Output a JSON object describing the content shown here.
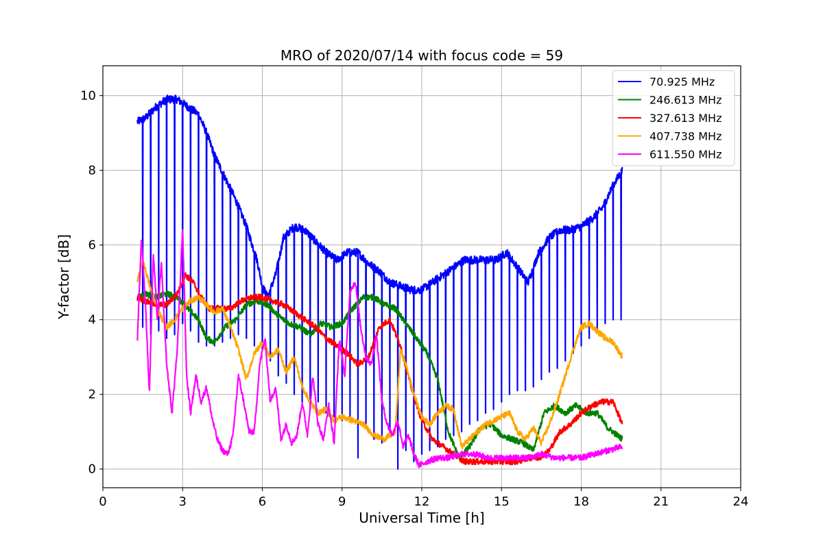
{
  "chart_data": {
    "type": "line",
    "title": "MRO of 2020/07/14 with focus code = 59",
    "xlabel": "Universal Time [h]",
    "ylabel": "Y-factor [dB]",
    "xlim": [
      0,
      24
    ],
    "ylim": [
      -0.5,
      10.8
    ],
    "xticks": [
      0,
      3,
      6,
      9,
      12,
      15,
      18,
      21,
      24
    ],
    "xtick_labels": [
      "0",
      "3",
      "6",
      "9",
      "12",
      "15",
      "18",
      "21",
      "24"
    ],
    "yticks": [
      0,
      2,
      4,
      6,
      8,
      10
    ],
    "ytick_labels": [
      "0",
      "2",
      "4",
      "6",
      "8",
      "10"
    ],
    "grid": true,
    "legend_position": "top-right",
    "series": [
      {
        "name": " 70.925 MHz",
        "color": "#0000ff",
        "x": [
          1.3,
          1.6,
          2.0,
          2.4,
          2.8,
          3.2,
          3.6,
          3.9,
          4.2,
          4.6,
          5.0,
          5.4,
          5.8,
          6.0,
          6.2,
          6.5,
          6.8,
          7.2,
          7.6,
          8.0,
          8.4,
          8.8,
          9.2,
          9.6,
          10.0,
          10.4,
          10.8,
          11.2,
          11.6,
          12.0,
          12.4,
          12.8,
          13.2,
          13.6,
          14.0,
          14.4,
          14.8,
          15.2,
          15.6,
          16.0,
          16.4,
          16.8,
          17.2,
          17.6,
          18.0,
          18.4,
          18.8,
          19.2,
          19.55
        ],
        "y": [
          9.3,
          9.4,
          9.7,
          9.9,
          9.9,
          9.7,
          9.5,
          9.0,
          8.4,
          7.8,
          7.2,
          6.5,
          5.6,
          4.9,
          4.6,
          5.2,
          6.2,
          6.5,
          6.4,
          6.1,
          5.8,
          5.6,
          5.8,
          5.8,
          5.5,
          5.3,
          5.0,
          4.9,
          4.8,
          4.8,
          5.0,
          5.2,
          5.4,
          5.6,
          5.6,
          5.6,
          5.6,
          5.8,
          5.4,
          5.0,
          5.8,
          6.2,
          6.4,
          6.4,
          6.5,
          6.7,
          7.0,
          7.6,
          8.0
        ],
        "dips": [
          1.5,
          1.8,
          2.1,
          2.4,
          2.7,
          3.0,
          3.3,
          3.6,
          3.9,
          4.2,
          4.5,
          4.8,
          5.1,
          5.4,
          5.7,
          6.0,
          6.3,
          6.6,
          6.9,
          7.2,
          7.5,
          7.8,
          8.1,
          8.4,
          8.7,
          9.0,
          9.3,
          9.6,
          9.9,
          10.2,
          10.5,
          10.8,
          11.1,
          11.4,
          11.7,
          12.0,
          12.3,
          12.6,
          12.9,
          13.2,
          13.5,
          13.8,
          14.1,
          14.4,
          14.7,
          15.0,
          15.3,
          15.6,
          15.9,
          16.2,
          16.5,
          16.8,
          17.1,
          17.4,
          17.7,
          18.0,
          18.3,
          18.6,
          18.9,
          19.2,
          19.5
        ],
        "dip_values": [
          3.8,
          3.6,
          3.7,
          3.5,
          3.6,
          3.9,
          3.7,
          3.4,
          3.3,
          3.3,
          3.4,
          3.5,
          3.6,
          3.5,
          3.3,
          3.2,
          2.9,
          2.5,
          2.3,
          2.0,
          1.8,
          1.6,
          1.8,
          1.5,
          1.4,
          1.3,
          1.4,
          0.3,
          1.1,
          0.8,
          0.7,
          0.9,
          0.0,
          0.5,
          0.2,
          0.4,
          0.5,
          0.6,
          0.8,
          0.9,
          1.0,
          1.2,
          1.3,
          1.5,
          1.6,
          1.8,
          2.0,
          2.1,
          2.1,
          2.2,
          2.4,
          2.6,
          2.7,
          2.9,
          3.1,
          3.3,
          3.5,
          3.7,
          3.9,
          4.0,
          4.0
        ]
      },
      {
        "name": "246.613 MHz",
        "color": "#008000",
        "x": [
          1.3,
          1.6,
          2.0,
          2.4,
          2.8,
          3.2,
          3.6,
          3.9,
          4.2,
          4.6,
          5.0,
          5.4,
          5.8,
          6.2,
          6.6,
          7.0,
          7.4,
          7.8,
          8.2,
          8.6,
          9.0,
          9.4,
          9.8,
          10.2,
          10.6,
          11.0,
          11.4,
          11.8,
          12.2,
          12.6,
          13.0,
          13.4,
          13.8,
          14.2,
          14.6,
          15.0,
          15.4,
          15.8,
          16.2,
          16.6,
          17.0,
          17.4,
          17.8,
          18.2,
          18.6,
          19.0,
          19.55
        ],
        "y": [
          4.6,
          4.7,
          4.6,
          4.7,
          4.6,
          4.3,
          4.0,
          3.5,
          3.4,
          3.8,
          4.0,
          4.4,
          4.5,
          4.4,
          4.1,
          3.9,
          3.8,
          3.6,
          3.9,
          3.8,
          3.9,
          4.3,
          4.6,
          4.6,
          4.4,
          4.3,
          3.9,
          3.5,
          3.1,
          2.4,
          1.0,
          0.3,
          0.6,
          1.1,
          1.2,
          0.9,
          0.8,
          0.7,
          0.5,
          1.5,
          1.7,
          1.5,
          1.7,
          1.5,
          1.5,
          1.1,
          0.8
        ]
      },
      {
        "name": "327.613 MHz",
        "color": "#ff0000",
        "x": [
          1.3,
          1.6,
          2.0,
          2.4,
          2.8,
          3.1,
          3.4,
          3.7,
          4.0,
          4.4,
          4.8,
          5.2,
          5.6,
          6.0,
          6.4,
          6.8,
          7.2,
          7.6,
          8.0,
          8.4,
          8.8,
          9.2,
          9.6,
          10.0,
          10.4,
          10.8,
          11.2,
          11.6,
          12.0,
          12.4,
          12.8,
          13.2,
          13.6,
          14.0,
          14.4,
          14.8,
          15.2,
          15.6,
          16.0,
          16.4,
          16.8,
          17.2,
          17.6,
          18.0,
          18.4,
          18.8,
          19.2,
          19.55
        ],
        "y": [
          4.6,
          4.5,
          4.4,
          4.4,
          4.7,
          5.2,
          5.0,
          4.6,
          4.3,
          4.3,
          4.3,
          4.5,
          4.6,
          4.6,
          4.5,
          4.4,
          4.2,
          4.0,
          3.8,
          3.5,
          3.3,
          3.1,
          2.8,
          3.0,
          3.8,
          4.0,
          3.3,
          2.2,
          1.3,
          0.8,
          0.6,
          0.4,
          0.2,
          0.2,
          0.2,
          0.2,
          0.2,
          0.2,
          0.3,
          0.3,
          0.5,
          1.0,
          1.2,
          1.5,
          1.7,
          1.8,
          1.8,
          1.2
        ]
      },
      {
        "name": "407.738 MHz",
        "color": "#ffa500",
        "x": [
          1.3,
          1.5,
          1.8,
          2.1,
          2.4,
          2.7,
          3.0,
          3.3,
          3.6,
          3.9,
          4.2,
          4.5,
          4.8,
          5.1,
          5.4,
          5.7,
          6.0,
          6.3,
          6.6,
          6.9,
          7.2,
          7.5,
          7.8,
          8.1,
          8.4,
          8.7,
          9.0,
          9.4,
          9.8,
          10.2,
          10.6,
          11.0,
          11.2,
          11.4,
          11.7,
          12.0,
          12.3,
          12.6,
          12.9,
          13.2,
          13.5,
          13.8,
          14.1,
          14.4,
          14.7,
          15.0,
          15.3,
          15.6,
          15.9,
          16.2,
          16.5,
          16.8,
          17.1,
          17.4,
          17.7,
          18.0,
          18.3,
          18.6,
          18.9,
          19.2,
          19.55
        ],
        "y": [
          5.0,
          5.6,
          4.8,
          4.2,
          3.8,
          4.0,
          4.3,
          4.5,
          4.6,
          4.4,
          4.2,
          4.3,
          3.8,
          3.2,
          2.4,
          3.1,
          3.4,
          3.0,
          3.2,
          2.6,
          3.0,
          2.2,
          1.8,
          1.5,
          1.6,
          1.3,
          1.4,
          1.3,
          1.2,
          0.9,
          0.8,
          1.0,
          3.2,
          2.8,
          2.0,
          1.4,
          1.2,
          1.5,
          1.7,
          1.6,
          0.6,
          0.8,
          1.0,
          1.2,
          1.3,
          1.4,
          1.5,
          1.0,
          0.8,
          1.1,
          0.7,
          1.2,
          1.8,
          2.5,
          3.2,
          3.8,
          3.9,
          3.7,
          3.5,
          3.4,
          3.0
        ]
      },
      {
        "name": "611.550 MHz",
        "color": "#ff00ff",
        "x": [
          1.3,
          1.45,
          1.6,
          1.75,
          1.9,
          2.05,
          2.2,
          2.4,
          2.6,
          2.8,
          3.0,
          3.15,
          3.3,
          3.5,
          3.7,
          3.9,
          4.1,
          4.3,
          4.5,
          4.7,
          4.9,
          5.1,
          5.3,
          5.5,
          5.7,
          5.9,
          6.1,
          6.3,
          6.5,
          6.7,
          6.9,
          7.1,
          7.3,
          7.5,
          7.7,
          7.9,
          8.1,
          8.3,
          8.5,
          8.7,
          8.9,
          9.1,
          9.3,
          9.5,
          9.7,
          9.9,
          10.1,
          10.3,
          10.5,
          10.7,
          10.9,
          11.1,
          11.3,
          11.5,
          11.7,
          11.9,
          12.2,
          12.6,
          13.0,
          13.5,
          14.0,
          14.5,
          15.0,
          15.5,
          16.0,
          16.5,
          17.0,
          17.5,
          18.0,
          18.5,
          19.0,
          19.55
        ],
        "y": [
          3.5,
          6.2,
          4.5,
          2.0,
          5.8,
          4.0,
          5.5,
          2.8,
          1.5,
          3.2,
          6.5,
          2.5,
          1.5,
          2.5,
          1.8,
          2.2,
          1.4,
          0.8,
          0.5,
          0.4,
          0.9,
          2.5,
          1.8,
          1.0,
          1.0,
          2.8,
          3.5,
          1.8,
          2.2,
          0.8,
          1.2,
          0.7,
          0.9,
          1.8,
          0.9,
          2.5,
          1.2,
          0.8,
          1.7,
          0.7,
          3.5,
          2.5,
          4.8,
          5.0,
          3.8,
          3.0,
          2.8,
          3.6,
          1.8,
          1.2,
          0.9,
          1.3,
          0.6,
          0.9,
          0.4,
          0.1,
          0.2,
          0.3,
          0.3,
          0.4,
          0.4,
          0.3,
          0.3,
          0.3,
          0.3,
          0.4,
          0.3,
          0.3,
          0.3,
          0.4,
          0.5,
          0.6
        ]
      }
    ]
  }
}
